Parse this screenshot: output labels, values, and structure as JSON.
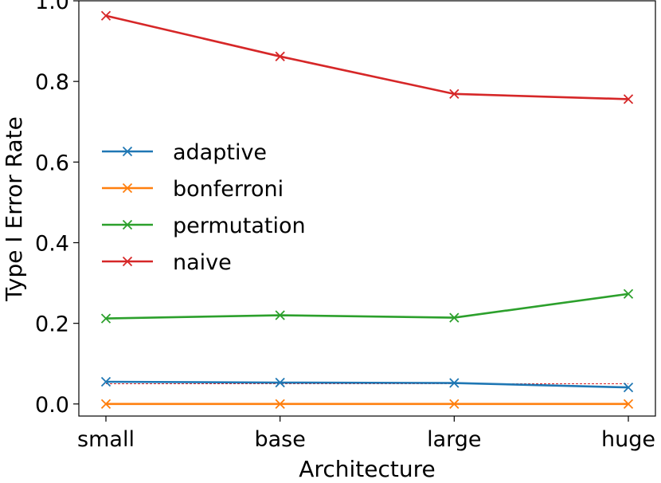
{
  "chart_data": {
    "type": "line",
    "title": "",
    "xlabel": "Architecture",
    "ylabel": "Type I Error Rate",
    "categories": [
      "small",
      "base",
      "large",
      "huge"
    ],
    "ylim": [
      -0.03,
      1.0
    ],
    "yticks": [
      "0.0",
      "0.2",
      "0.4",
      "0.6",
      "0.8",
      "1.0"
    ],
    "yticks_values": [
      0.0,
      0.2,
      0.4,
      0.6,
      0.8,
      1.0
    ],
    "grid": false,
    "legend_position": "center-left",
    "reference_line": {
      "value": 0.05,
      "style": "dashed",
      "color": "#d62728"
    },
    "series": [
      {
        "name": "adaptive",
        "color": "#1f77b4",
        "marker": "x",
        "values": [
          0.055,
          0.053,
          0.052,
          0.041
        ]
      },
      {
        "name": "bonferroni",
        "color": "#ff7f0e",
        "marker": "x",
        "values": [
          0.0,
          0.0,
          0.0,
          0.0
        ]
      },
      {
        "name": "permutation",
        "color": "#2ca02c",
        "marker": "x",
        "values": [
          0.212,
          0.22,
          0.214,
          0.273
        ]
      },
      {
        "name": "naive",
        "color": "#d62728",
        "marker": "x",
        "values": [
          0.963,
          0.862,
          0.769,
          0.756
        ]
      }
    ]
  }
}
